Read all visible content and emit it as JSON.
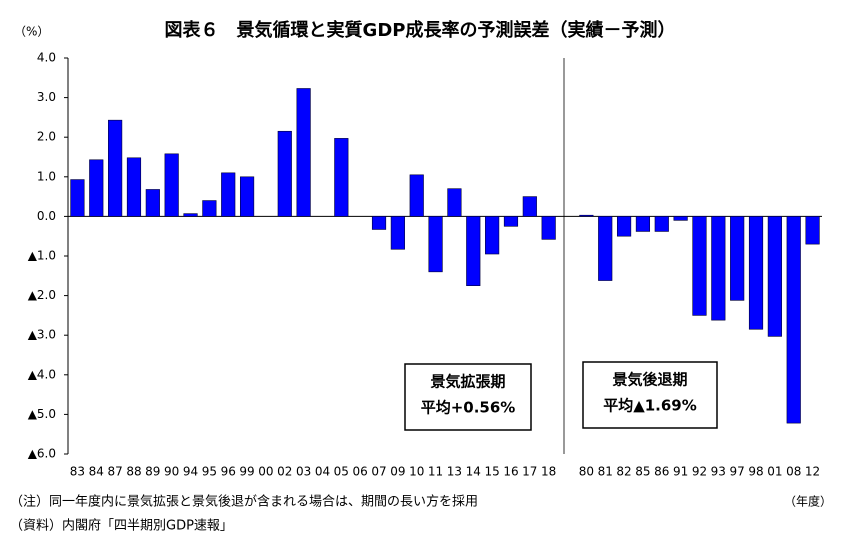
{
  "chart_data": {
    "type": "bar",
    "title": "図表６　景気循環と実質GDP成長率の予測誤差（実績－予測）",
    "y_unit": "（%）",
    "x_unit": "（年度）",
    "categories": [
      "83",
      "84",
      "87",
      "88",
      "89",
      "90",
      "94",
      "95",
      "96",
      "99",
      "00",
      "02",
      "03",
      "04",
      "05",
      "06",
      "07",
      "09",
      "10",
      "11",
      "13",
      "14",
      "15",
      "16",
      "17",
      "18",
      null,
      "80",
      "81",
      "82",
      "85",
      "86",
      "91",
      "92",
      "93",
      "97",
      "98",
      "01",
      "08",
      "12"
    ],
    "values": [
      0.93,
      1.43,
      2.43,
      1.48,
      0.68,
      1.58,
      0.07,
      0.4,
      1.1,
      1.0,
      0,
      2.15,
      3.23,
      0,
      1.97,
      0,
      -0.33,
      -0.83,
      1.05,
      -1.4,
      0.7,
      -1.75,
      -0.95,
      -0.25,
      0.5,
      -0.58,
      null,
      0.03,
      -1.62,
      -0.5,
      -0.38,
      -0.38,
      -0.1,
      -2.5,
      -2.62,
      -2.12,
      -2.85,
      -3.03,
      -5.22,
      -0.7
    ],
    "color": "#0000ff",
    "ylim": [
      -6,
      4
    ],
    "yticks": [
      {
        "value": 4,
        "label": "4.0"
      },
      {
        "value": 3,
        "label": "3.0"
      },
      {
        "value": 2,
        "label": "2.0"
      },
      {
        "value": 1,
        "label": "1.0"
      },
      {
        "value": 0,
        "label": "0.0"
      },
      {
        "value": -1,
        "label": "▲1.0"
      },
      {
        "value": -2,
        "label": "▲2.0"
      },
      {
        "value": -3,
        "label": "▲3.0"
      },
      {
        "value": -4,
        "label": "▲4.0"
      },
      {
        "value": -5,
        "label": "▲5.0"
      },
      {
        "value": -6,
        "label": "▲6.0"
      }
    ],
    "annotations": [
      {
        "lines": [
          "景気拡張期",
          "平均+0.56%"
        ]
      },
      {
        "lines": [
          "景気後退期",
          "平均▲1.69%"
        ]
      }
    ],
    "notes": [
      "（注）同一年度内に景気拡張と景気後退が含まれる場合は、期間の長い方を採用",
      "（資料）内閣府「四半期別GDP速報」"
    ]
  }
}
